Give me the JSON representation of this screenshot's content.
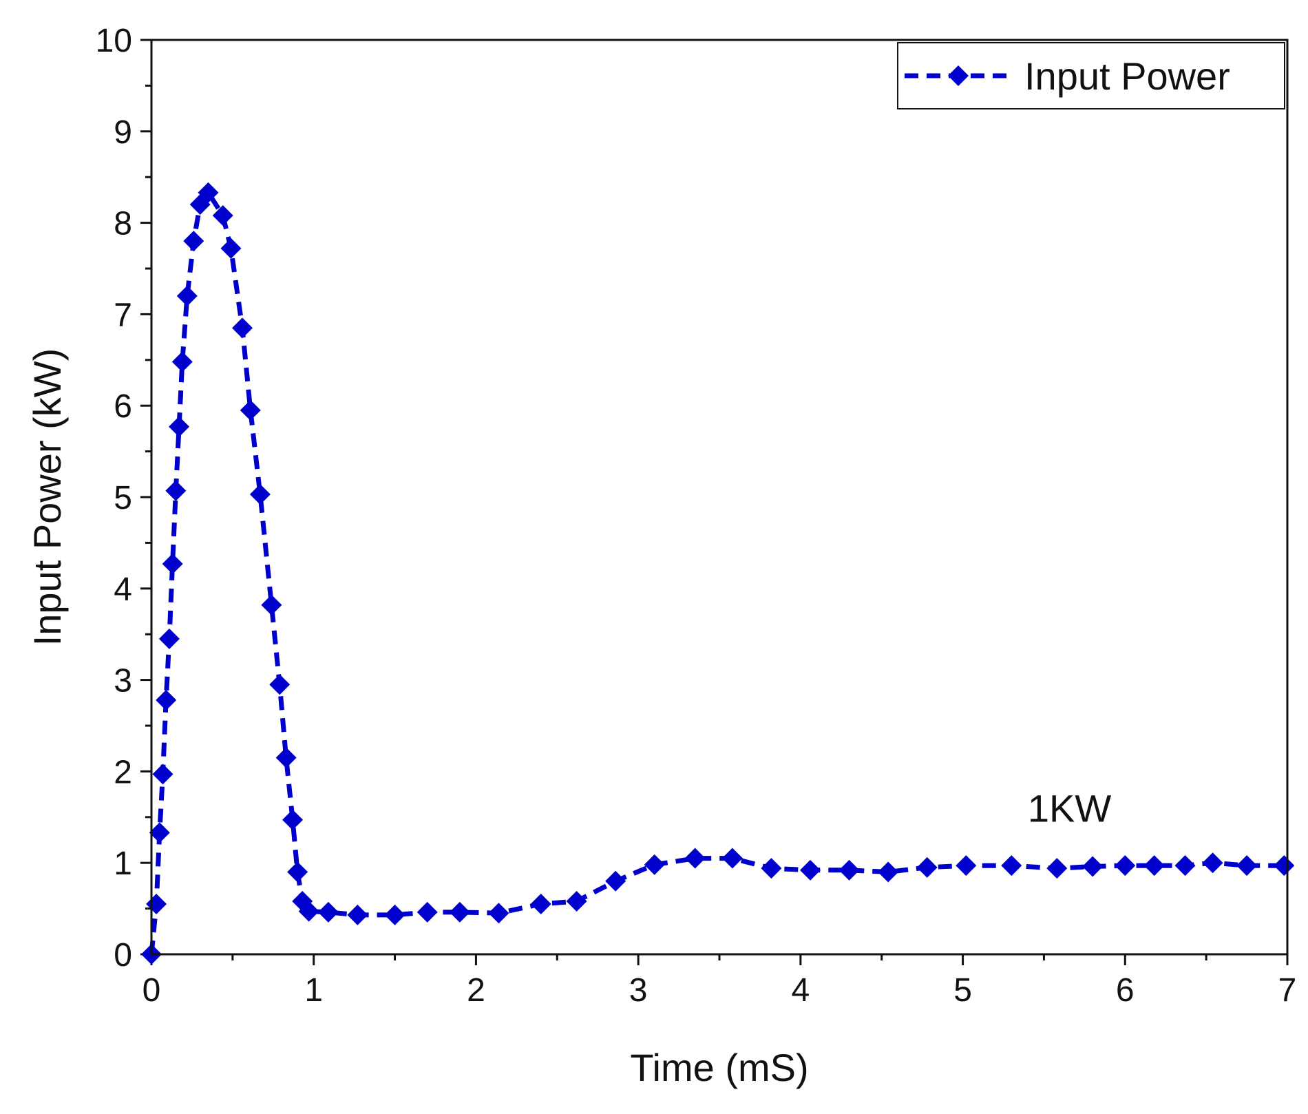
{
  "chart_data": {
    "type": "line",
    "title": "",
    "xlabel": "Time (mS)",
    "ylabel": "Input Power (kW)",
    "xlim": [
      0,
      7
    ],
    "ylim": [
      0,
      10
    ],
    "xticks": [
      0,
      1,
      2,
      3,
      4,
      5,
      6,
      7
    ],
    "yticks": [
      0,
      1,
      2,
      3,
      4,
      5,
      6,
      7,
      8,
      9,
      10
    ],
    "grid": false,
    "legend_position": "top-right",
    "annotation": {
      "text": "1KW",
      "x": 5.4,
      "y": 1.45
    },
    "series": [
      {
        "name": "Input Power",
        "color": "#0000cc",
        "line_style": "dashed",
        "marker": "diamond",
        "x": [
          0.0,
          0.03,
          0.05,
          0.07,
          0.09,
          0.11,
          0.13,
          0.15,
          0.17,
          0.19,
          0.22,
          0.26,
          0.3,
          0.35,
          0.44,
          0.49,
          0.56,
          0.61,
          0.67,
          0.74,
          0.79,
          0.83,
          0.87,
          0.9,
          0.93,
          0.97,
          1.09,
          1.27,
          1.5,
          1.7,
          1.9,
          2.14,
          2.4,
          2.62,
          2.86,
          3.1,
          3.35,
          3.58,
          3.82,
          4.06,
          4.3,
          4.54,
          4.78,
          5.02,
          5.3,
          5.58,
          5.8,
          6.0,
          6.18,
          6.37,
          6.54,
          6.75,
          6.98
        ],
        "y": [
          0.0,
          0.55,
          1.33,
          1.97,
          2.78,
          3.45,
          4.27,
          5.07,
          5.77,
          6.48,
          7.2,
          7.8,
          8.2,
          8.33,
          8.08,
          7.72,
          6.85,
          5.95,
          5.03,
          3.82,
          2.95,
          2.15,
          1.47,
          0.9,
          0.58,
          0.47,
          0.46,
          0.43,
          0.43,
          0.46,
          0.46,
          0.45,
          0.55,
          0.58,
          0.8,
          0.98,
          1.05,
          1.05,
          0.94,
          0.92,
          0.92,
          0.9,
          0.95,
          0.97,
          0.97,
          0.94,
          0.96,
          0.97,
          0.97,
          0.97,
          1.0,
          0.97,
          0.97
        ]
      }
    ]
  }
}
